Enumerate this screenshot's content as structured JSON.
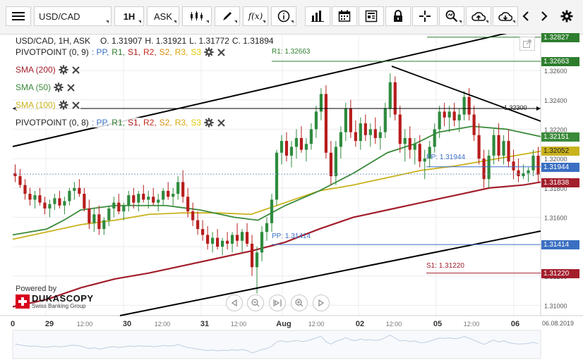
{
  "toolbar": {
    "symbol": "USD/CAD",
    "timeframe": "1H",
    "price_side": "ASK",
    "fx_label": "f(x)"
  },
  "ohlc": {
    "symbol_label": "USD/CAD, 1H, ASK",
    "open": "O. 1.31907",
    "high": "H. 1.31921",
    "low": "L. 1.31772",
    "close": "C. 1.31894"
  },
  "indicators": [
    {
      "name": "PIVOTPOINT (0, 9)",
      "color": "#222222",
      "pivot_levels": true
    },
    {
      "name": "SMA (200)",
      "color": "#a31f2c",
      "pivot_levels": false
    },
    {
      "name": "SMA (50)",
      "color": "#3a8a3a",
      "pivot_levels": false
    },
    {
      "name": "SMA (100)",
      "color": "#c9b21c",
      "pivot_levels": false
    },
    {
      "name": "PIVOTPOINT (0, 8)",
      "color": "#222222",
      "pivot_levels": true
    }
  ],
  "pivot_labels": [
    {
      "text": ": PP,",
      "color": "#3a6fc2"
    },
    {
      "text": "R1,",
      "color": "#2e7d2e"
    },
    {
      "text": "S1,",
      "color": "#b21b1b"
    },
    {
      "text": "R2,",
      "color": "#c22c1c"
    },
    {
      "text": "S2,",
      "color": "#d88c0c"
    },
    {
      "text": "R3,",
      "color": "#d8a80c"
    },
    {
      "text": "S3",
      "color": "#e0c800"
    }
  ],
  "chart_annotations": {
    "r1": "R1: 1.32663",
    "pp": "PP: 1.31944",
    "pp2": "PP: 1.31414",
    "s1": "S1: 1.31220",
    "hline": "1.32300"
  },
  "price_tags": [
    {
      "value": "1.32827",
      "color": "#2e7d2e",
      "price": 1.32827
    },
    {
      "value": "1.32663",
      "color": "#2e7d2e",
      "price": 1.32663
    },
    {
      "value": "1.32151",
      "color": "#3a8a3a",
      "price": 1.32151
    },
    {
      "value": "1.32052",
      "color": "#c9b21c",
      "price": 1.32052
    },
    {
      "value": "1.31944",
      "color": "#3a6fc2",
      "price": 1.31944
    },
    {
      "value": "1.31838",
      "color": "#a31f2c",
      "price": 1.31838
    },
    {
      "value": "1.31414",
      "color": "#3a6fc2",
      "price": 1.31414
    },
    {
      "value": "1.31220",
      "color": "#a31f2c",
      "price": 1.3122
    }
  ],
  "branding": {
    "powered_by": "Powered by",
    "name": "DUKASCOPY",
    "sub": "Swiss Banking Group"
  },
  "colors": {
    "sma200": "#a31f2c",
    "sma50": "#3a8a3a",
    "sma100": "#c9b21c",
    "bull": "#2e8b3e",
    "bear": "#b71c1c"
  },
  "chart_data": {
    "type": "candlestick",
    "symbol": "USD/CAD",
    "timeframe": "1H",
    "y_ticks": [
      "1.32600",
      "1.32400",
      "1.32200",
      "1.32000",
      "1.31800",
      "1.31600",
      "1.31400",
      "1.31200",
      "1.31000"
    ],
    "ylim": [
      1.3093,
      1.3285
    ],
    "x_ticks": [
      "0",
      "29",
      "12:00",
      "30",
      "12:00",
      "31",
      "12:00",
      "Aug",
      "12:00",
      "02",
      "12:00",
      "05",
      "12:00",
      "06"
    ],
    "date_label": "06.08.2019",
    "sma200": [
      [
        0,
        1.3099
      ],
      [
        10,
        1.3104
      ],
      [
        20,
        1.3112
      ],
      [
        30,
        1.3118
      ],
      [
        40,
        1.3122
      ],
      [
        50,
        1.3127
      ],
      [
        60,
        1.3132
      ],
      [
        70,
        1.3137
      ],
      [
        80,
        1.3143
      ],
      [
        90,
        1.3152
      ],
      [
        100,
        1.316
      ],
      [
        110,
        1.3165
      ],
      [
        120,
        1.317
      ],
      [
        130,
        1.3175
      ],
      [
        140,
        1.318
      ],
      [
        150,
        1.3182
      ],
      [
        155,
        1.3184
      ]
    ],
    "sma100": [
      [
        0,
        1.3145
      ],
      [
        10,
        1.315
      ],
      [
        20,
        1.3155
      ],
      [
        30,
        1.3158
      ],
      [
        40,
        1.3162
      ],
      [
        50,
        1.3163
      ],
      [
        60,
        1.3163
      ],
      [
        70,
        1.3162
      ],
      [
        80,
        1.317
      ],
      [
        90,
        1.3178
      ],
      [
        100,
        1.3182
      ],
      [
        110,
        1.3187
      ],
      [
        120,
        1.3192
      ],
      [
        130,
        1.3195
      ],
      [
        140,
        1.3199
      ],
      [
        150,
        1.3203
      ],
      [
        155,
        1.3205
      ]
    ],
    "sma50": [
      [
        0,
        1.3148
      ],
      [
        10,
        1.3152
      ],
      [
        15,
        1.3158
      ],
      [
        20,
        1.3165
      ],
      [
        30,
        1.3168
      ],
      [
        45,
        1.3168
      ],
      [
        55,
        1.3165
      ],
      [
        65,
        1.316
      ],
      [
        72,
        1.3158
      ],
      [
        80,
        1.3168
      ],
      [
        90,
        1.3178
      ],
      [
        100,
        1.319
      ],
      [
        110,
        1.3204
      ],
      [
        118,
        1.321
      ],
      [
        125,
        1.3218
      ],
      [
        135,
        1.3222
      ],
      [
        145,
        1.322
      ],
      [
        155,
        1.3215
      ]
    ],
    "candles": [
      [
        1.319,
        1.3196,
        1.3184,
        1.3188
      ],
      [
        1.3188,
        1.3193,
        1.318,
        1.3182
      ],
      [
        1.3182,
        1.3186,
        1.3172,
        1.3176
      ],
      [
        1.3176,
        1.318,
        1.3168,
        1.3172
      ],
      [
        1.3172,
        1.3178,
        1.3166,
        1.3175
      ],
      [
        1.3175,
        1.318,
        1.3168,
        1.317
      ],
      [
        1.317,
        1.3174,
        1.3162,
        1.3166
      ],
      [
        1.3166,
        1.3172,
        1.316,
        1.3169
      ],
      [
        1.3169,
        1.3176,
        1.3165,
        1.3173
      ],
      [
        1.3173,
        1.3178,
        1.3166,
        1.3168
      ],
      [
        1.3168,
        1.3174,
        1.3162,
        1.3171
      ],
      [
        1.3171,
        1.318,
        1.3168,
        1.3178
      ],
      [
        1.3178,
        1.3184,
        1.3172,
        1.318
      ],
      [
        1.318,
        1.3186,
        1.3174,
        1.3176
      ],
      [
        1.3176,
        1.318,
        1.3164,
        1.3166
      ],
      [
        1.3166,
        1.3172,
        1.3152,
        1.3156
      ],
      [
        1.3156,
        1.3166,
        1.315,
        1.3162
      ],
      [
        1.3162,
        1.3168,
        1.3148,
        1.3152
      ],
      [
        1.3152,
        1.316,
        1.3148,
        1.3158
      ],
      [
        1.3158,
        1.3168,
        1.3154,
        1.3166
      ],
      [
        1.3166,
        1.3174,
        1.316,
        1.317
      ],
      [
        1.317,
        1.3176,
        1.3162,
        1.3164
      ],
      [
        1.3164,
        1.317,
        1.3158,
        1.3168
      ],
      [
        1.3168,
        1.3178,
        1.3164,
        1.3175
      ],
      [
        1.3175,
        1.318,
        1.3166,
        1.317
      ],
      [
        1.317,
        1.3178,
        1.3164,
        1.3176
      ],
      [
        1.3176,
        1.3182,
        1.317,
        1.3172
      ],
      [
        1.3172,
        1.3178,
        1.3166,
        1.3174
      ],
      [
        1.3174,
        1.318,
        1.3168,
        1.317
      ],
      [
        1.317,
        1.3176,
        1.3164,
        1.3172
      ],
      [
        1.3172,
        1.318,
        1.3168,
        1.3178
      ],
      [
        1.3178,
        1.3184,
        1.3172,
        1.3174
      ],
      [
        1.3174,
        1.318,
        1.3168,
        1.3176
      ],
      [
        1.3176,
        1.3188,
        1.3172,
        1.3184
      ],
      [
        1.3184,
        1.3192,
        1.317,
        1.3174
      ],
      [
        1.3174,
        1.318,
        1.316,
        1.3164
      ],
      [
        1.3164,
        1.317,
        1.3154,
        1.3158
      ],
      [
        1.3158,
        1.3164,
        1.3148,
        1.3152
      ],
      [
        1.3152,
        1.3158,
        1.3144,
        1.3148
      ],
      [
        1.3148,
        1.3154,
        1.3138,
        1.3142
      ],
      [
        1.3142,
        1.315,
        1.3136,
        1.3146
      ],
      [
        1.3146,
        1.3152,
        1.3138,
        1.314
      ],
      [
        1.314,
        1.3146,
        1.3134,
        1.3144
      ],
      [
        1.3144,
        1.315,
        1.3138,
        1.3142
      ],
      [
        1.3142,
        1.315,
        1.3136,
        1.3148
      ],
      [
        1.3148,
        1.3156,
        1.314,
        1.3144
      ],
      [
        1.3144,
        1.3152,
        1.3136,
        1.315
      ],
      [
        1.315,
        1.3156,
        1.314,
        1.3142
      ],
      [
        1.3142,
        1.3148,
        1.312,
        1.3126
      ],
      [
        1.3126,
        1.314,
        1.3108,
        1.3136
      ],
      [
        1.3136,
        1.3154,
        1.313,
        1.315
      ],
      [
        1.315,
        1.316,
        1.3144,
        1.3156
      ],
      [
        1.3156,
        1.3176,
        1.315,
        1.3172
      ],
      [
        1.3172,
        1.3206,
        1.3168,
        1.3204
      ],
      [
        1.3204,
        1.3216,
        1.3196,
        1.3212
      ],
      [
        1.3212,
        1.3218,
        1.3198,
        1.3202
      ],
      [
        1.3202,
        1.3212,
        1.3194,
        1.3208
      ],
      [
        1.3208,
        1.322,
        1.32,
        1.3214
      ],
      [
        1.3214,
        1.3222,
        1.3204,
        1.3206
      ],
      [
        1.3206,
        1.3214,
        1.3198,
        1.321
      ],
      [
        1.321,
        1.3224,
        1.3206,
        1.322
      ],
      [
        1.322,
        1.3236,
        1.3214,
        1.3232
      ],
      [
        1.3232,
        1.3248,
        1.3226,
        1.3244
      ],
      [
        1.3244,
        1.325,
        1.32,
        1.3204
      ],
      [
        1.3204,
        1.3212,
        1.3182,
        1.3188
      ],
      [
        1.3188,
        1.3212,
        1.3182,
        1.3208
      ],
      [
        1.3208,
        1.3222,
        1.32,
        1.3218
      ],
      [
        1.3218,
        1.3238,
        1.3212,
        1.3234
      ],
      [
        1.3234,
        1.324,
        1.3214,
        1.3218
      ],
      [
        1.3218,
        1.3226,
        1.3208,
        1.3212
      ],
      [
        1.3212,
        1.3228,
        1.3206,
        1.3224
      ],
      [
        1.3224,
        1.323,
        1.3212,
        1.3216
      ],
      [
        1.3216,
        1.3224,
        1.3208,
        1.322
      ],
      [
        1.322,
        1.3228,
        1.321,
        1.3214
      ],
      [
        1.3214,
        1.3222,
        1.3206,
        1.3218
      ],
      [
        1.3218,
        1.3238,
        1.3214,
        1.3234
      ],
      [
        1.3234,
        1.3258,
        1.3228,
        1.3252
      ],
      [
        1.3252,
        1.3256,
        1.3226,
        1.323
      ],
      [
        1.323,
        1.3236,
        1.3204,
        1.321
      ],
      [
        1.321,
        1.322,
        1.3198,
        1.3214
      ],
      [
        1.3214,
        1.3222,
        1.32,
        1.3206
      ],
      [
        1.3206,
        1.3214,
        1.3196,
        1.321
      ],
      [
        1.321,
        1.3216,
        1.3194,
        1.3198
      ],
      [
        1.3198,
        1.3206,
        1.3186,
        1.32
      ],
      [
        1.32,
        1.3212,
        1.3194,
        1.3208
      ],
      [
        1.3208,
        1.3224,
        1.3204,
        1.322
      ],
      [
        1.322,
        1.3236,
        1.3214,
        1.3232
      ],
      [
        1.3232,
        1.3238,
        1.3222,
        1.3228
      ],
      [
        1.3228,
        1.3236,
        1.3218,
        1.3232
      ],
      [
        1.3232,
        1.3238,
        1.3222,
        1.3226
      ],
      [
        1.3226,
        1.3234,
        1.3218,
        1.323
      ],
      [
        1.323,
        1.3246,
        1.3226,
        1.3242
      ],
      [
        1.3242,
        1.3248,
        1.3226,
        1.323
      ],
      [
        1.323,
        1.3236,
        1.3212,
        1.3216
      ],
      [
        1.3216,
        1.3224,
        1.3196,
        1.32
      ],
      [
        1.32,
        1.3206,
        1.318,
        1.3186
      ],
      [
        1.3186,
        1.3206,
        1.318,
        1.3202
      ],
      [
        1.3202,
        1.322,
        1.3196,
        1.3216
      ],
      [
        1.3216,
        1.3224,
        1.3198,
        1.3202
      ],
      [
        1.3202,
        1.3216,
        1.3196,
        1.3212
      ],
      [
        1.3212,
        1.322,
        1.3194,
        1.3198
      ],
      [
        1.3198,
        1.3206,
        1.3186,
        1.3192
      ],
      [
        1.3192,
        1.32,
        1.3184,
        1.3188
      ],
      [
        1.3188,
        1.3196,
        1.3186,
        1.319
      ],
      [
        1.319,
        1.3194,
        1.3184,
        1.3192
      ],
      [
        1.3192,
        1.3206,
        1.3188,
        1.3202
      ],
      [
        1.3202,
        1.3208,
        1.3184,
        1.3189
      ]
    ]
  }
}
